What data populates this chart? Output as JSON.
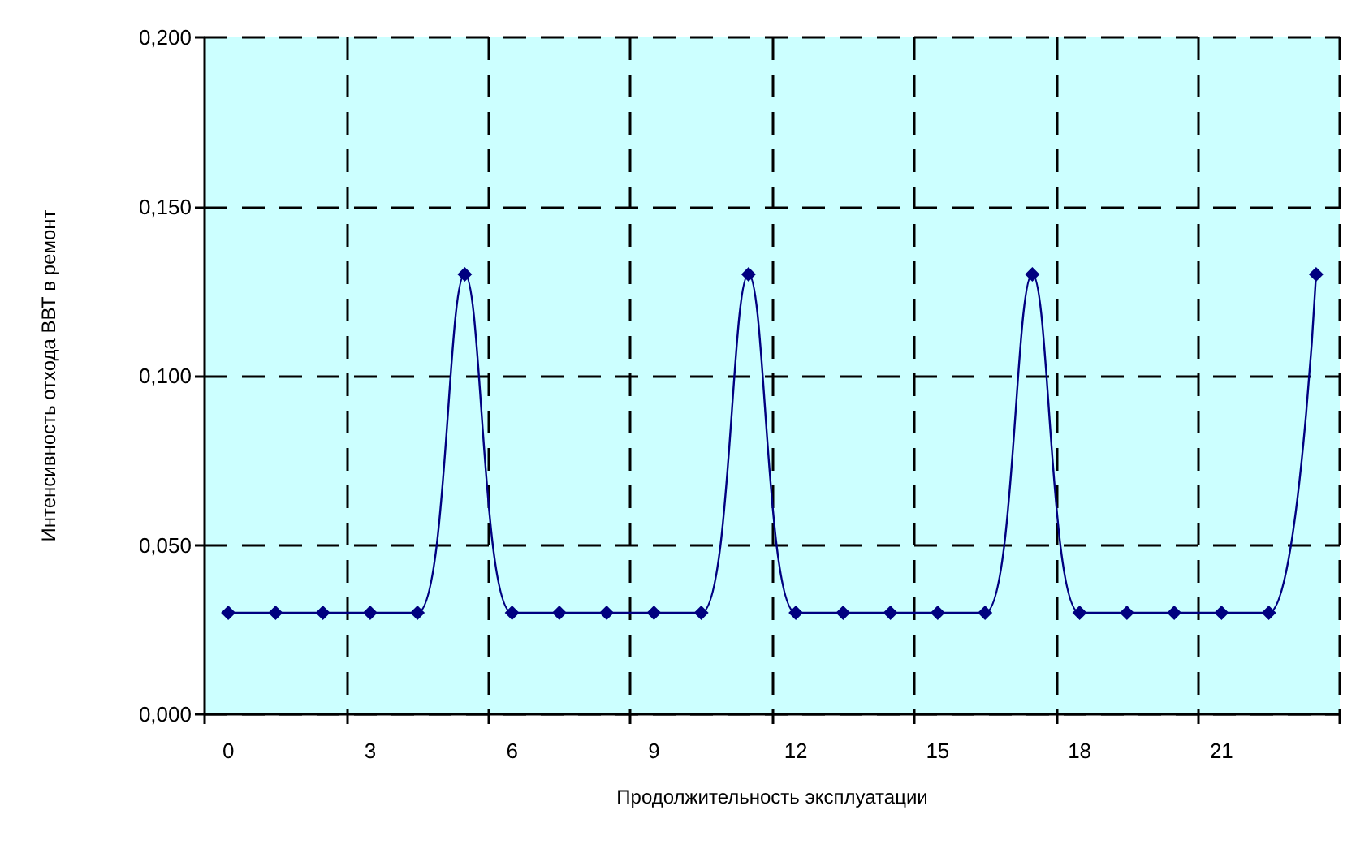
{
  "chart_data": {
    "type": "line",
    "xlabel": "Продолжительность эксплуатации",
    "ylabel": "Интенсивность отхода ВВТ в ремонт",
    "categories": [
      "0",
      null,
      null,
      "3",
      null,
      null,
      "6",
      null,
      null,
      "9",
      null,
      null,
      "12",
      null,
      null,
      "15",
      null,
      null,
      "18",
      null,
      null,
      "21",
      null,
      null
    ],
    "series": [
      {
        "color": "#000080",
        "values": [
          0.03,
          0.03,
          0.03,
          0.03,
          0.03,
          0.13,
          0.03,
          0.03,
          0.03,
          0.03,
          0.03,
          0.13,
          0.03,
          0.03,
          0.03,
          0.03,
          0.03,
          0.13,
          0.03,
          0.03,
          0.03,
          0.03,
          0.03,
          0.13
        ]
      }
    ],
    "ylim": [
      0,
      0.2
    ],
    "yticks": [
      {
        "value": 0,
        "label": "0,000"
      },
      {
        "value": 0.05,
        "label": "0,050"
      },
      {
        "value": 0.1,
        "label": "0,100"
      },
      {
        "value": 0.15,
        "label": "0,150"
      },
      {
        "value": 0.2,
        "label": "0,200"
      }
    ],
    "grid": true,
    "marker": "diamond",
    "line_style": "solid"
  }
}
